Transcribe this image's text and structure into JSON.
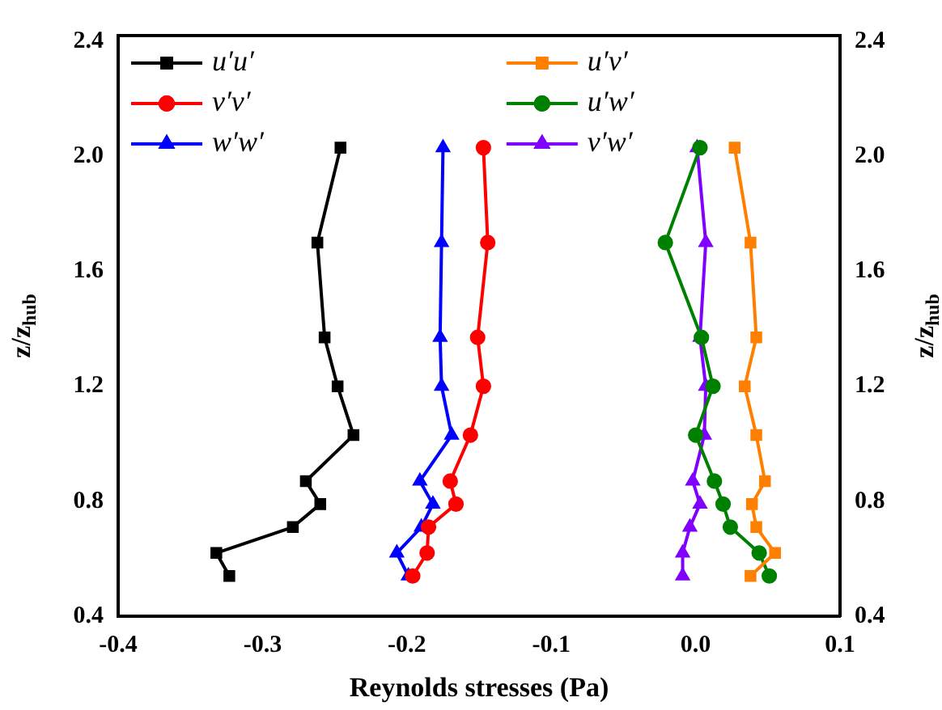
{
  "chart_data": {
    "type": "line",
    "xlabel": "Reynolds stresses (Pa)",
    "ylabel": "z/z$_{hub}$",
    "y2label": "z/z$_{hub}$",
    "xlim": [
      -0.4,
      0.1
    ],
    "xticks": [
      -0.4,
      -0.3,
      -0.2,
      -0.1,
      {
        "value": 0,
        "label": "0.0"
      },
      0.1
    ],
    "ylim": [
      0.4,
      2.42
    ],
    "yticks": [
      0.4,
      0.8,
      1.2,
      1.6,
      {
        "value": 2,
        "label": "2.0"
      },
      2.4
    ],
    "y2lim": [
      0.4,
      2.42
    ],
    "y2ticks": [
      0.4,
      0.8,
      1.2,
      1.6,
      {
        "value": 2,
        "label": "2.0"
      },
      2.4
    ],
    "grid": false,
    "legend": "top",
    "line_style": "solid",
    "series": [
      {
        "name": "u′u′",
        "color": "#000000",
        "marker": "square",
        "x": [
          -0.246,
          -0.262,
          -0.257,
          -0.248,
          -0.237,
          -0.27,
          -0.26,
          -0.279,
          -0.332,
          -0.323
        ],
        "values": [
          2.03,
          1.7,
          1.37,
          1.2,
          1.03,
          0.87,
          0.79,
          0.71,
          0.62,
          0.54
        ]
      },
      {
        "name": "v′v′",
        "color": "#ff0000",
        "marker": "circle",
        "x": [
          -0.147,
          -0.144,
          -0.151,
          -0.147,
          -0.156,
          -0.17,
          -0.166,
          -0.185,
          -0.186,
          -0.196
        ],
        "values": [
          2.03,
          1.7,
          1.37,
          1.2,
          1.03,
          0.87,
          0.79,
          0.71,
          0.62,
          0.54
        ]
      },
      {
        "name": "w′w′",
        "color": "#0000ff",
        "marker": "triangle",
        "x": [
          -0.175,
          -0.176,
          -0.177,
          -0.176,
          -0.169,
          -0.191,
          -0.182,
          -0.19,
          -0.207,
          -0.199
        ],
        "values": [
          2.03,
          1.7,
          1.37,
          1.2,
          1.03,
          0.87,
          0.79,
          0.71,
          0.62,
          0.54
        ]
      },
      {
        "name": "u′v′",
        "color": "#ff8000",
        "marker": "square",
        "x": [
          0.027,
          0.038,
          0.042,
          0.034,
          0.042,
          0.048,
          0.039,
          0.042,
          0.055,
          0.038
        ],
        "values": [
          2.03,
          1.7,
          1.37,
          1.2,
          1.03,
          0.87,
          0.79,
          0.71,
          0.62,
          0.54
        ]
      },
      {
        "name": "u′w′",
        "color": "#008000",
        "marker": "circle",
        "x": [
          0.003,
          -0.021,
          0.004,
          0.012,
          0.0,
          0.013,
          0.019,
          0.024,
          0.044,
          0.051
        ],
        "values": [
          2.03,
          1.7,
          1.37,
          1.2,
          1.03,
          0.87,
          0.79,
          0.71,
          0.62,
          0.54
        ]
      },
      {
        "name": "v′w′",
        "color": "#8000ff",
        "marker": "triangle",
        "x": [
          0.001,
          0.007,
          0.003,
          0.007,
          0.006,
          -0.002,
          0.003,
          -0.004,
          -0.009,
          -0.009
        ],
        "values": [
          2.03,
          1.7,
          1.37,
          1.2,
          1.03,
          0.87,
          0.79,
          0.71,
          0.62,
          0.54
        ]
      }
    ]
  }
}
